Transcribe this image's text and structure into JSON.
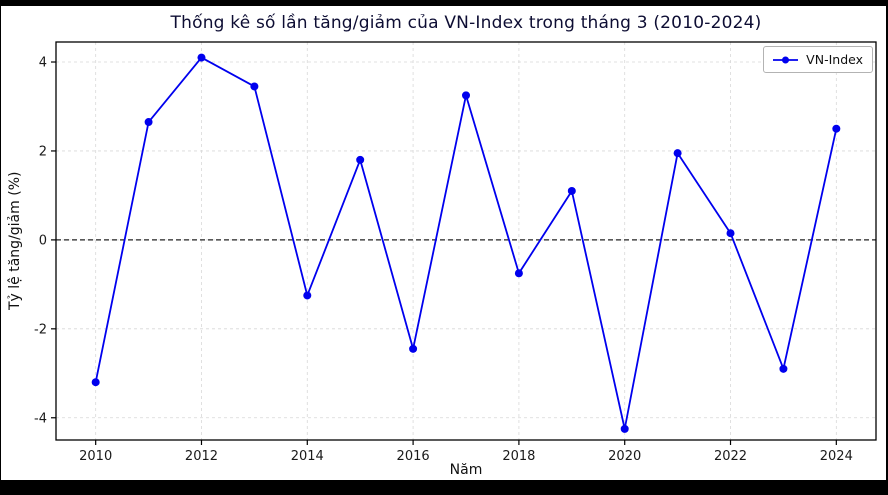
{
  "page": {
    "background": "#000000",
    "figure_background": "#ffffff"
  },
  "chart_data": {
    "type": "line",
    "title": "Thống kê số lần tăng/giảm của VN-Index trong tháng 3 (2010-2024)",
    "xlabel": "Năm",
    "ylabel": "Tỷ lệ tăng/giảm (%)",
    "x": [
      2010,
      2011,
      2012,
      2013,
      2014,
      2015,
      2016,
      2017,
      2018,
      2019,
      2020,
      2021,
      2022,
      2023,
      2024
    ],
    "series": [
      {
        "name": "VN-Index",
        "color": "#0000ee",
        "values": [
          -3.2,
          2.65,
          4.1,
          3.45,
          -1.25,
          1.8,
          -2.45,
          3.25,
          -0.75,
          1.1,
          -4.25,
          1.95,
          0.15,
          -2.9,
          2.5
        ]
      }
    ],
    "xticks": [
      2010,
      2012,
      2014,
      2016,
      2018,
      2020,
      2022,
      2024
    ],
    "yticks": [
      -4,
      -2,
      0,
      2,
      4
    ],
    "xlim": [
      2009.25,
      2024.75
    ],
    "ylim": [
      -4.5,
      4.45
    ],
    "grid": true,
    "zero_line": true,
    "legend": {
      "position": "top-right",
      "entries": [
        "VN-Index"
      ]
    },
    "colors": {
      "line": "#0000ee",
      "zero_line": "#222222",
      "grid": "#d8d8d8",
      "axis": "#000000",
      "tick_label": "#1a1a1a",
      "title": "#0d0d33"
    }
  }
}
